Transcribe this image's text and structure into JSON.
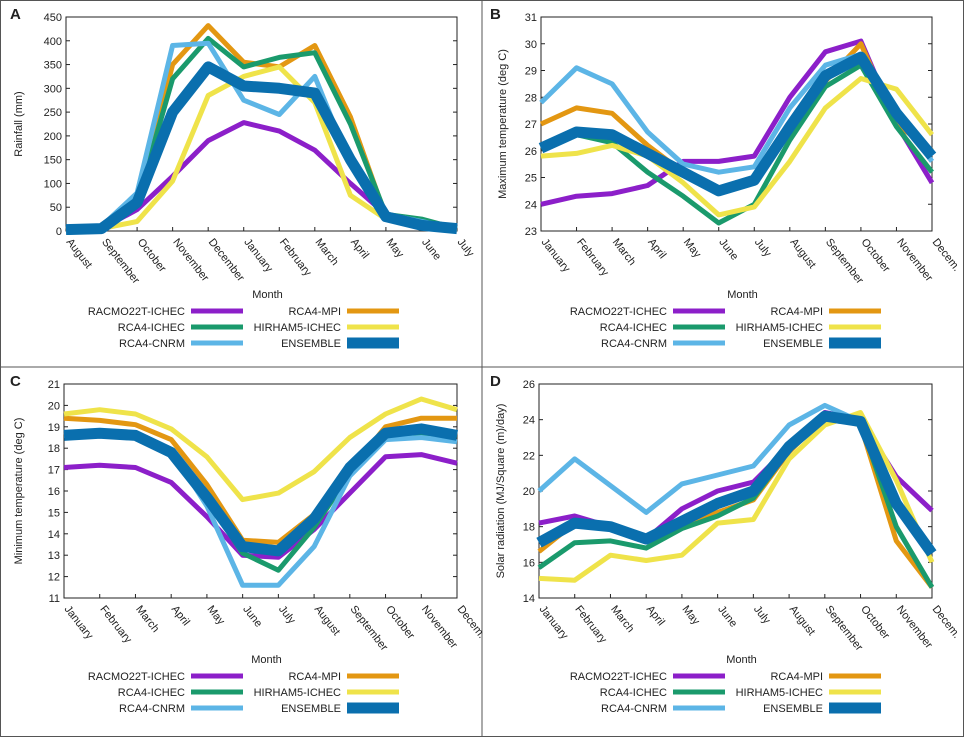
{
  "colors": {
    "RACMO22T-ICHEC": "#8c1fc9",
    "RCA4-MPI": "#e39712",
    "RCA4-ICHEC": "#1a9a6c",
    "HIRHAM5-ICHEC": "#efe34a",
    "RCA4-CNRM": "#5cb5e6",
    "ENSEMBLE": "#0a6fae"
  },
  "legend_entries": [
    "RACMO22T-ICHEC",
    "RCA4-MPI",
    "RCA4-ICHEC",
    "HIRHAM5-ICHEC",
    "RCA4-CNRM",
    "ENSEMBLE"
  ],
  "chart_data": [
    {
      "panel": "A",
      "type": "line",
      "xlabel": "Month",
      "ylabel": "Rainfall (mm)",
      "ylim": [
        0,
        450
      ],
      "yticks": [
        "0",
        "50",
        "100",
        "150",
        "200",
        "250",
        "300",
        "350",
        "400",
        "450"
      ],
      "categories": [
        "August",
        "September",
        "October",
        "November",
        "December",
        "January",
        "February",
        "March",
        "April",
        "May",
        "June",
        "July"
      ],
      "series": [
        {
          "name": "RACMO22T-ICHEC",
          "values": [
            3,
            5,
            45,
            115,
            190,
            228,
            210,
            170,
            100,
            35,
            10,
            5
          ]
        },
        {
          "name": "RCA4-MPI",
          "values": [
            3,
            8,
            55,
            350,
            432,
            355,
            345,
            390,
            240,
            30,
            15,
            5
          ]
        },
        {
          "name": "RCA4-ICHEC",
          "values": [
            3,
            8,
            60,
            320,
            405,
            345,
            365,
            375,
            225,
            35,
            25,
            5
          ]
        },
        {
          "name": "HIRHAM5-ICHEC",
          "values": [
            3,
            5,
            20,
            105,
            285,
            325,
            345,
            270,
            75,
            25,
            10,
            5
          ]
        },
        {
          "name": "RCA4-CNRM",
          "values": [
            5,
            10,
            80,
            390,
            395,
            275,
            245,
            325,
            140,
            35,
            20,
            5
          ]
        },
        {
          "name": "ENSEMBLE",
          "values": [
            3,
            5,
            60,
            250,
            345,
            305,
            300,
            290,
            150,
            30,
            12,
            5
          ]
        }
      ]
    },
    {
      "panel": "B",
      "type": "line",
      "xlabel": "Month",
      "ylabel": "Maximum temperature (deg C)",
      "ylim": [
        23,
        31
      ],
      "yticks": [
        "23",
        "24",
        "25",
        "26",
        "27",
        "28",
        "29",
        "30",
        "31"
      ],
      "categories": [
        "January",
        "February",
        "March",
        "April",
        "May",
        "June",
        "July",
        "August",
        "September",
        "October",
        "November",
        "Decem."
      ],
      "series": [
        {
          "name": "RACMO22T-ICHEC",
          "values": [
            24.0,
            24.3,
            24.4,
            24.7,
            25.6,
            25.6,
            25.8,
            28.0,
            29.7,
            30.1,
            27.0,
            24.8
          ]
        },
        {
          "name": "RCA4-MPI",
          "values": [
            27.0,
            27.6,
            27.4,
            26.2,
            25.2,
            24.6,
            25.0,
            26.8,
            28.6,
            30.0,
            27.0,
            26.0
          ]
        },
        {
          "name": "RCA4-ICHEC",
          "values": [
            26.1,
            26.6,
            26.3,
            25.2,
            24.3,
            23.3,
            24.0,
            26.4,
            28.4,
            29.2,
            26.9,
            25.2
          ]
        },
        {
          "name": "HIRHAM5-ICHEC",
          "values": [
            25.8,
            25.9,
            26.2,
            25.8,
            24.8,
            23.6,
            23.9,
            25.6,
            27.6,
            28.7,
            28.3,
            26.6
          ]
        },
        {
          "name": "RCA4-CNRM",
          "values": [
            27.8,
            29.1,
            28.5,
            26.7,
            25.5,
            25.2,
            25.4,
            27.6,
            29.2,
            29.6,
            27.4,
            25.6
          ]
        },
        {
          "name": "ENSEMBLE",
          "values": [
            26.1,
            26.7,
            26.6,
            25.9,
            25.2,
            24.5,
            24.9,
            26.9,
            28.8,
            29.5,
            27.4,
            25.8
          ]
        }
      ]
    },
    {
      "panel": "C",
      "type": "line",
      "xlabel": "Month",
      "ylabel": "Minimum temperature (deg C)",
      "ylim": [
        11,
        21
      ],
      "yticks": [
        "11",
        "12",
        "13",
        "14",
        "15",
        "16",
        "17",
        "18",
        "19",
        "20",
        "21"
      ],
      "categories": [
        "January",
        "February",
        "March",
        "April",
        "May",
        "June",
        "July",
        "August",
        "September",
        "October",
        "November",
        "Decem."
      ],
      "series": [
        {
          "name": "RACMO22T-ICHEC",
          "values": [
            17.1,
            17.2,
            17.1,
            16.4,
            14.8,
            13.0,
            12.9,
            14.2,
            15.9,
            17.6,
            17.7,
            17.3
          ]
        },
        {
          "name": "RCA4-MPI",
          "values": [
            19.4,
            19.3,
            19.1,
            18.4,
            16.3,
            13.7,
            13.6,
            14.9,
            16.9,
            19.0,
            19.4,
            19.4
          ]
        },
        {
          "name": "RCA4-ICHEC",
          "values": [
            18.6,
            18.6,
            18.5,
            17.8,
            15.6,
            13.1,
            12.3,
            14.3,
            16.8,
            18.6,
            18.7,
            18.6
          ]
        },
        {
          "name": "HIRHAM5-ICHEC",
          "values": [
            19.6,
            19.8,
            19.6,
            18.9,
            17.6,
            15.6,
            15.9,
            16.9,
            18.5,
            19.6,
            20.3,
            19.8
          ]
        },
        {
          "name": "RCA4-CNRM",
          "values": [
            18.6,
            18.7,
            18.6,
            17.9,
            15.3,
            11.6,
            11.6,
            13.4,
            16.7,
            18.4,
            18.5,
            18.3
          ]
        },
        {
          "name": "ENSEMBLE",
          "values": [
            18.6,
            18.7,
            18.6,
            17.8,
            15.7,
            13.4,
            13.2,
            14.7,
            17.1,
            18.7,
            18.9,
            18.6
          ]
        }
      ]
    },
    {
      "panel": "D",
      "type": "line",
      "xlabel": "Month",
      "ylabel": "Solar radiation (MJ/Square (m)/day)",
      "ylim": [
        14,
        26
      ],
      "yticks": [
        "14",
        "16",
        "18",
        "20",
        "22",
        "24",
        "26"
      ],
      "categories": [
        "January",
        "February",
        "March",
        "April",
        "May",
        "June",
        "July",
        "August",
        "September",
        "October",
        "November",
        "Decem."
      ],
      "series": [
        {
          "name": "RACMO22T-ICHEC",
          "values": [
            18.2,
            18.6,
            18.0,
            17.3,
            19.0,
            20.0,
            20.5,
            22.5,
            24.4,
            24.0,
            20.8,
            18.9
          ]
        },
        {
          "name": "RCA4-MPI",
          "values": [
            16.6,
            18.2,
            18.0,
            17.4,
            18.1,
            18.8,
            19.5,
            22.2,
            24.2,
            23.7,
            17.2,
            14.6
          ]
        },
        {
          "name": "RCA4-ICHEC",
          "values": [
            15.7,
            17.1,
            17.2,
            16.8,
            17.9,
            18.6,
            19.6,
            22.3,
            24.0,
            23.8,
            18.0,
            14.6
          ]
        },
        {
          "name": "HIRHAM5-ICHEC",
          "values": [
            15.1,
            15.0,
            16.4,
            16.1,
            16.4,
            18.2,
            18.4,
            21.8,
            23.7,
            24.4,
            20.6,
            16.0
          ]
        },
        {
          "name": "RCA4-CNRM",
          "values": [
            20.0,
            21.8,
            20.3,
            18.8,
            20.4,
            20.9,
            21.4,
            23.7,
            24.8,
            23.9,
            19.3,
            16.8
          ]
        },
        {
          "name": "ENSEMBLE",
          "values": [
            17.1,
            18.2,
            18.0,
            17.3,
            18.3,
            19.3,
            20.0,
            22.5,
            24.2,
            23.9,
            19.3,
            16.5
          ]
        }
      ]
    }
  ]
}
